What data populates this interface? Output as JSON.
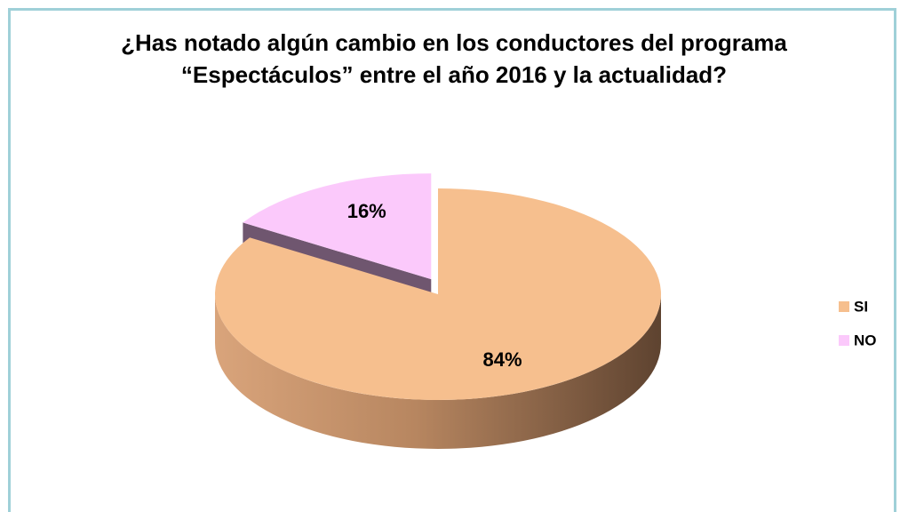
{
  "chart_data": {
    "type": "pie3d",
    "title": "¿Has notado algún cambio en los conductores del programa “Espectáculos” entre el año 2016 y la actualidad?",
    "categories": [
      "SI",
      "NO"
    ],
    "values": [
      84,
      16
    ],
    "value_labels": [
      "84%",
      "16%"
    ],
    "colors": [
      "#f6bf8e",
      "#fbc9fb"
    ],
    "explode": [
      false,
      true
    ],
    "legend": "right"
  }
}
